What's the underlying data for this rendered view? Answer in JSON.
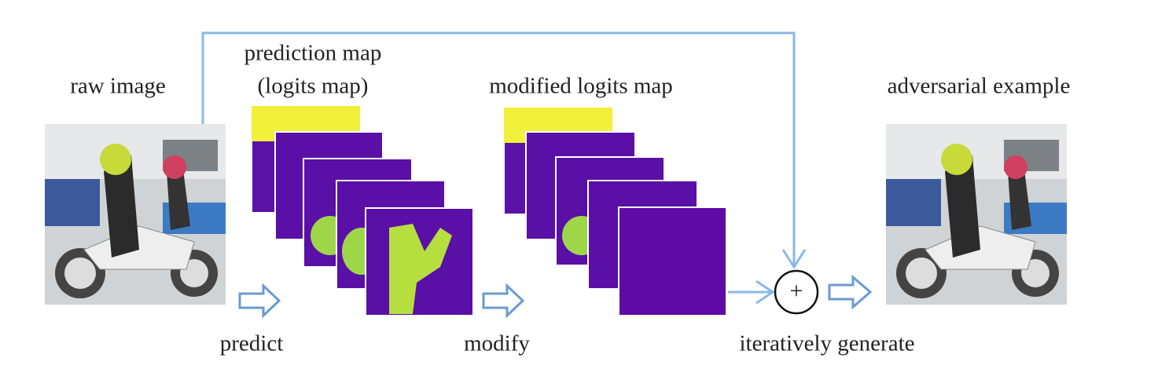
{
  "labels": {
    "raw_image": "raw image",
    "prediction_map": "prediction map",
    "logits_map": "(logits map)",
    "modified_logits_map": "modified logits map",
    "adversarial_example": "adversarial example",
    "predict": "predict",
    "modify": "modify",
    "iteratively_generate": "iteratively generate",
    "operator": "+"
  }
}
